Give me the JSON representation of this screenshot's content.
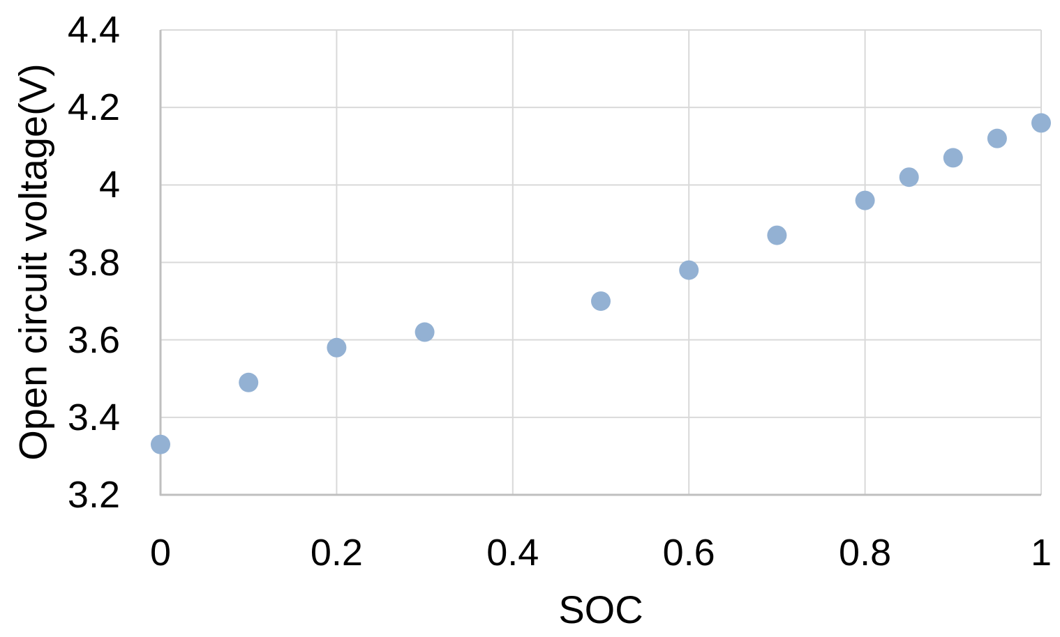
{
  "chart_data": {
    "type": "scatter",
    "title": "",
    "xlabel": "SOC",
    "ylabel": "Open circuit voltage(V)",
    "xlim": [
      0,
      1
    ],
    "ylim": [
      3.2,
      4.4
    ],
    "x_tick_labels": [
      "0",
      "0.2",
      "0.4",
      "0.6",
      "0.8",
      "1"
    ],
    "x_tick_values": [
      0,
      0.2,
      0.4,
      0.6,
      0.8,
      1
    ],
    "y_tick_labels": [
      "3.2",
      "3.4",
      "3.6",
      "3.8",
      "4",
      "4.2",
      "4.4"
    ],
    "y_tick_values": [
      3.2,
      3.4,
      3.6,
      3.8,
      4.0,
      4.2,
      4.4
    ],
    "grid": true,
    "legend_position": "none",
    "series": [
      {
        "marker": "circle",
        "color": "#93B1D3",
        "points": [
          {
            "x": 0.0,
            "y": 3.33
          },
          {
            "x": 0.1,
            "y": 3.49
          },
          {
            "x": 0.2,
            "y": 3.58
          },
          {
            "x": 0.3,
            "y": 3.62
          },
          {
            "x": 0.5,
            "y": 3.7
          },
          {
            "x": 0.6,
            "y": 3.78
          },
          {
            "x": 0.7,
            "y": 3.87
          },
          {
            "x": 0.8,
            "y": 3.96
          },
          {
            "x": 0.85,
            "y": 4.02
          },
          {
            "x": 0.9,
            "y": 4.07
          },
          {
            "x": 0.95,
            "y": 4.12
          },
          {
            "x": 1.0,
            "y": 4.16
          }
        ]
      }
    ],
    "colors": {
      "background": "#FFFFFF",
      "grid": "#D9D9D9",
      "axis": "#BFBFBF",
      "marker": "#93B1D3",
      "text": "#000000"
    }
  }
}
